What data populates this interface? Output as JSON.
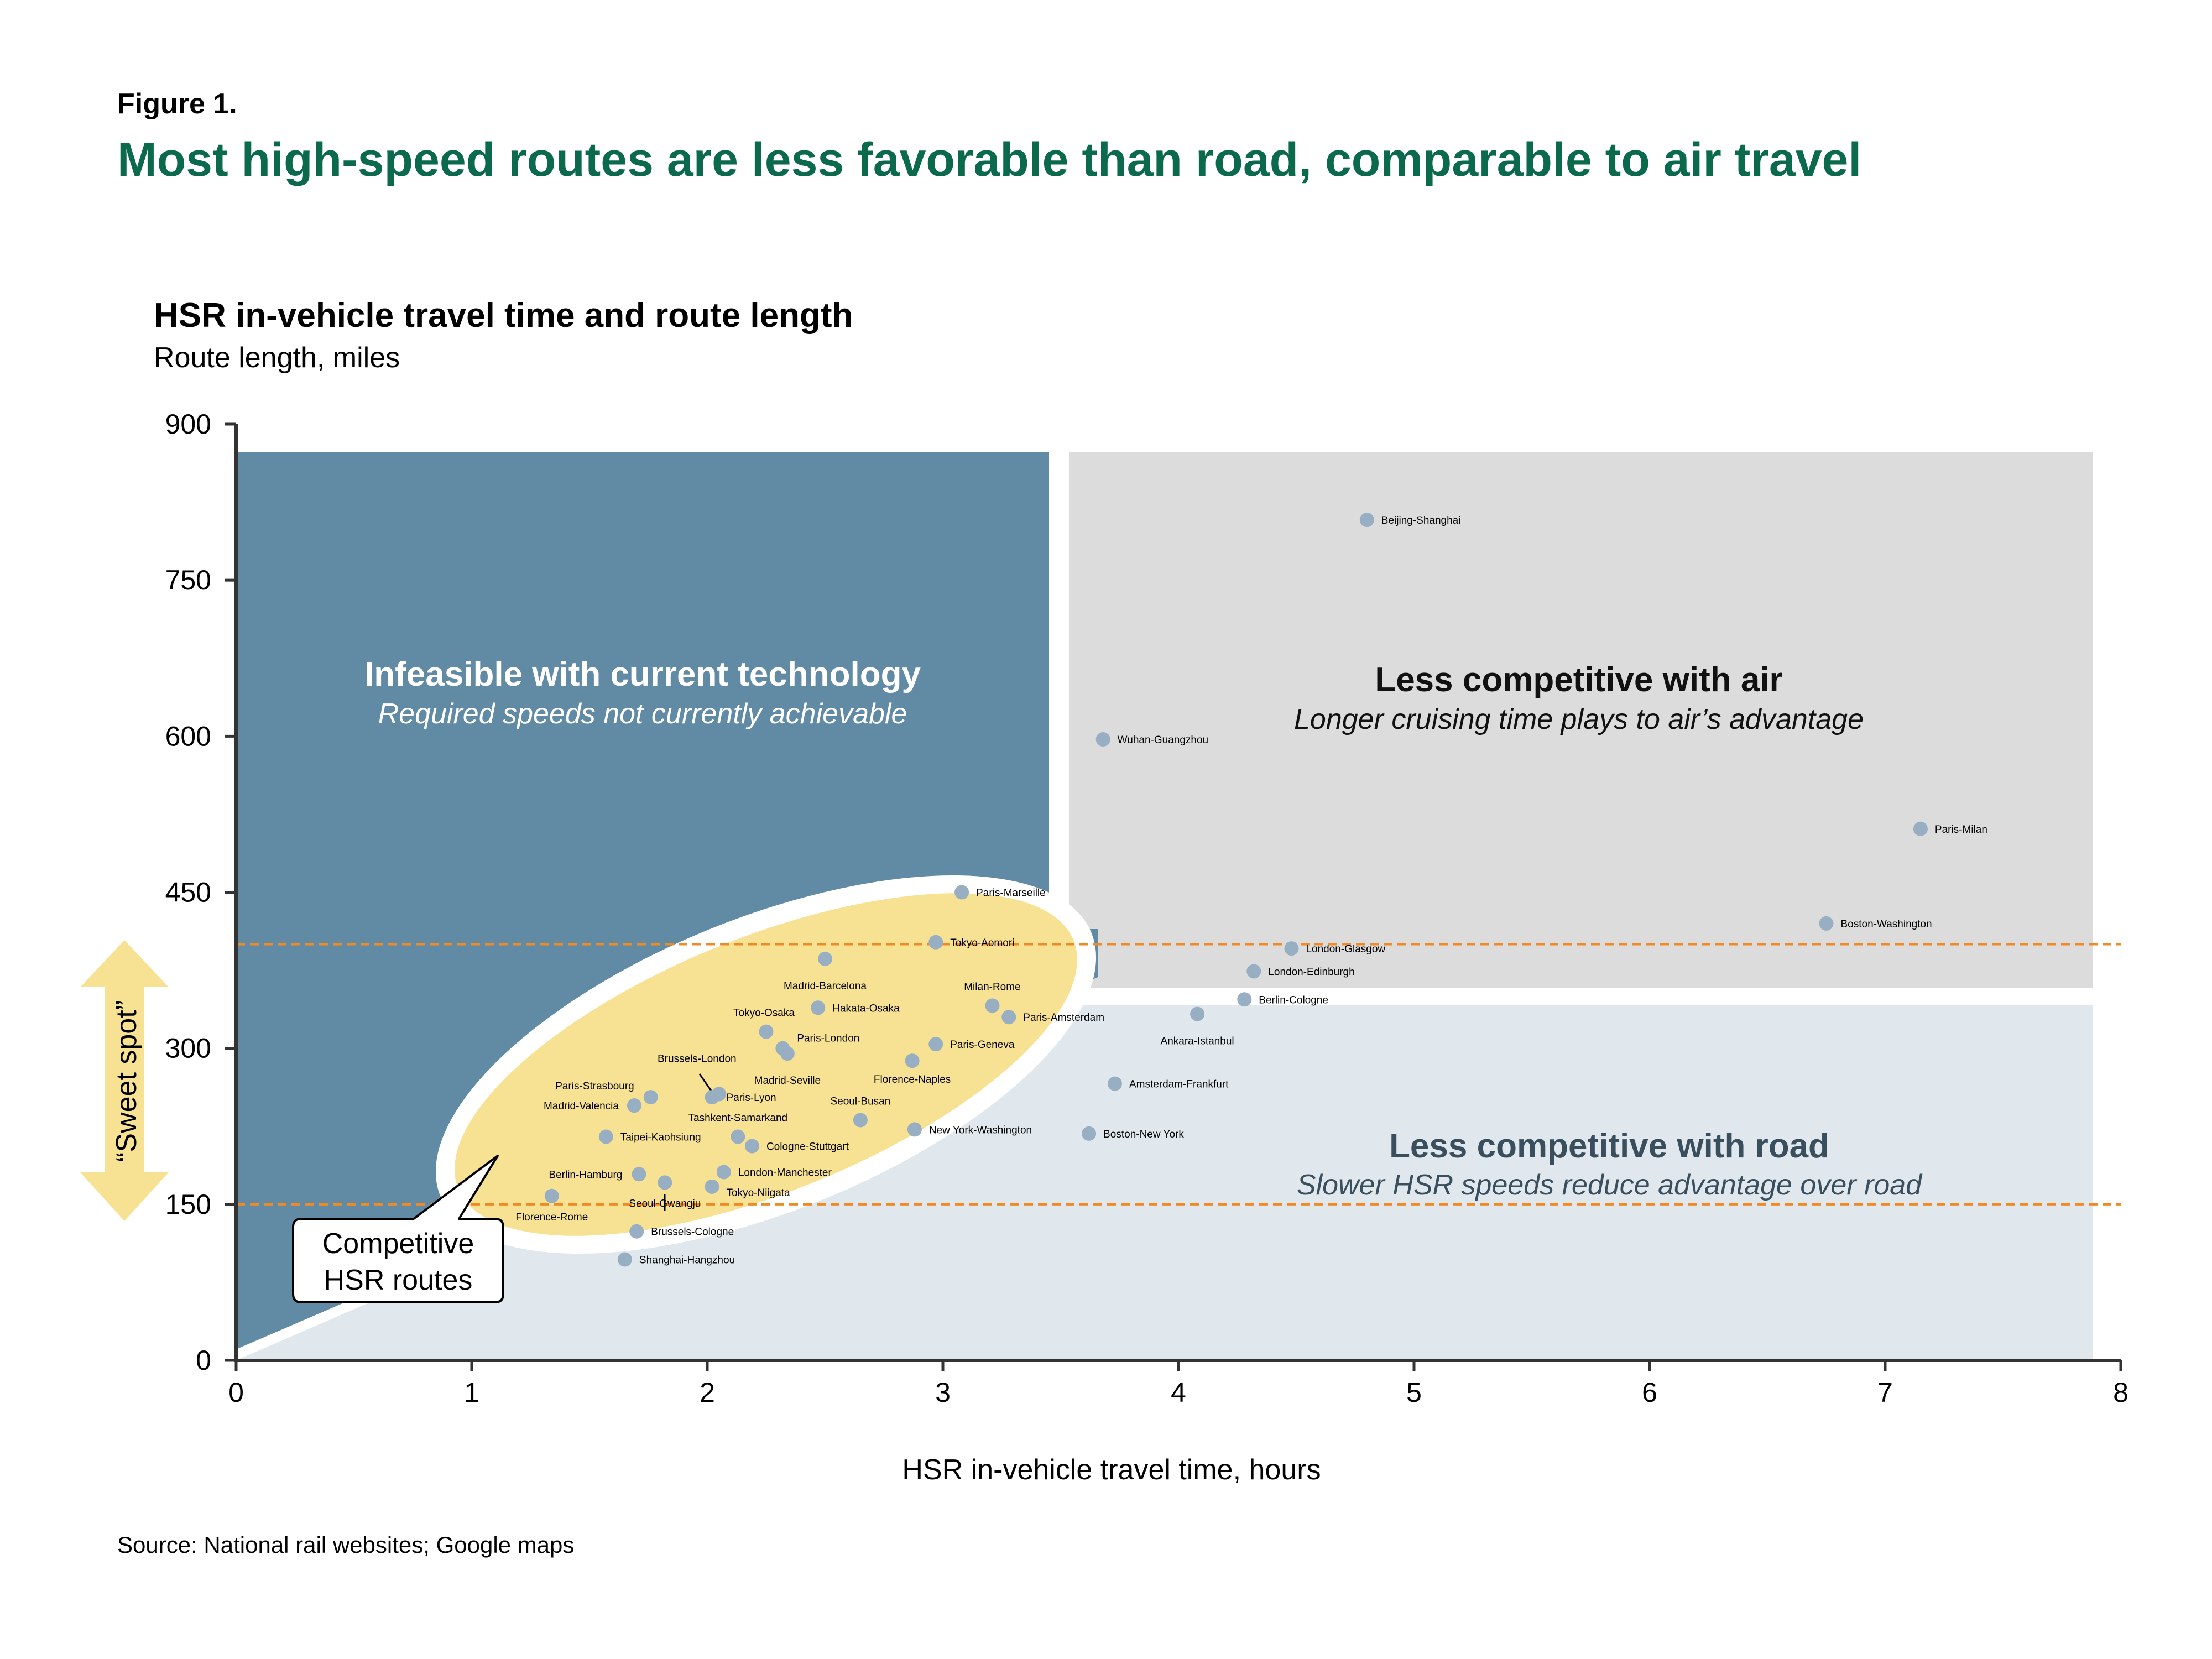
{
  "figure_label": "Figure 1.",
  "figure_title": "Most high-speed routes are less favorable than road, comparable to air travel",
  "source": "Source:  National rail websites; Google maps",
  "colors": {
    "title_green": "#0b6a4c",
    "infeasible_zone": "#618aa5",
    "air_zone": "#dcdcdc",
    "road_zone": "#e1e8ed",
    "sweet_spot": "#f7e294",
    "threshold_line": "#f08a24",
    "point": "#98aec2",
    "axis": "#333333"
  },
  "chart_data": {
    "type": "scatter",
    "title": "HSR in-vehicle travel time and route length",
    "subtitle": "Route length, miles",
    "xlabel": "HSR in-vehicle travel time, hours",
    "ylabel": "Route length, miles",
    "xlim": [
      0,
      8
    ],
    "ylim": [
      0,
      900
    ],
    "xticks": [
      0,
      1,
      2,
      3,
      4,
      5,
      6,
      7,
      8
    ],
    "yticks": [
      0,
      150,
      300,
      450,
      600,
      750,
      900
    ],
    "grid": false,
    "thresholds": [
      150,
      400
    ],
    "zones": {
      "infeasible": {
        "title": "Infeasible with current technology",
        "subtitle": "Required speeds not currently achievable"
      },
      "air": {
        "title": "Less competitive with air",
        "subtitle": "Longer cruising time plays to air’s advantage"
      },
      "road": {
        "title": "Less competitive with road",
        "subtitle": "Slower HSR speeds reduce advantage over road"
      }
    },
    "sweet_spot_label": "“Sweet spot”",
    "callout_label": [
      "Competitive",
      "HSR routes"
    ],
    "points": [
      {
        "label": "Beijing-Shanghai",
        "x": 4.8,
        "y": 808
      },
      {
        "label": "Wuhan-Guangzhou",
        "x": 3.68,
        "y": 597
      },
      {
        "label": "Paris-Milan",
        "x": 7.15,
        "y": 511
      },
      {
        "label": "Boston-Washington",
        "x": 6.75,
        "y": 420
      },
      {
        "label": "Paris-Marseille",
        "x": 3.08,
        "y": 450
      },
      {
        "label": "Tokyo-Aomori",
        "x": 2.97,
        "y": 402
      },
      {
        "label": "London-Glasgow",
        "x": 4.48,
        "y": 396
      },
      {
        "label": "London-Edinburgh",
        "x": 4.32,
        "y": 374
      },
      {
        "label": "Madrid-Barcelona",
        "x": 2.5,
        "y": 386
      },
      {
        "label": "Berlin-Cologne",
        "x": 4.28,
        "y": 347
      },
      {
        "label": "Milan-Rome",
        "x": 3.21,
        "y": 341
      },
      {
        "label": "Hakata-Osaka",
        "x": 2.47,
        "y": 339
      },
      {
        "label": "Ankara-Istanbul",
        "x": 4.08,
        "y": 333
      },
      {
        "label": "Paris-Amsterdam",
        "x": 3.28,
        "y": 330
      },
      {
        "label": "Tokyo-Osaka",
        "x": 2.25,
        "y": 316
      },
      {
        "label": "Paris-Geneva",
        "x": 2.97,
        "y": 304
      },
      {
        "label": "Paris-London",
        "x": 2.32,
        "y": 300
      },
      {
        "label": "Madrid-Seville",
        "x": 2.34,
        "y": 295
      },
      {
        "label": "Florence-Naples",
        "x": 2.87,
        "y": 288
      },
      {
        "label": "Amsterdam-Frankfurt",
        "x": 3.73,
        "y": 266
      },
      {
        "label": "Brussels-London",
        "x": 2.05,
        "y": 256
      },
      {
        "label": "Paris-Strasbourg",
        "x": 1.76,
        "y": 253
      },
      {
        "label": "Paris-Lyon",
        "x": 2.02,
        "y": 253
      },
      {
        "label": "Madrid-Valencia",
        "x": 1.69,
        "y": 245
      },
      {
        "label": "Seoul-Busan",
        "x": 2.65,
        "y": 231
      },
      {
        "label": "New York-Washington",
        "x": 2.88,
        "y": 222
      },
      {
        "label": "Boston-New York",
        "x": 3.62,
        "y": 218
      },
      {
        "label": "Tashkent-Samarkand",
        "x": 2.13,
        "y": 215
      },
      {
        "label": "Taipei-Kaohsiung",
        "x": 1.57,
        "y": 215
      },
      {
        "label": "Cologne-Stuttgart",
        "x": 2.19,
        "y": 206
      },
      {
        "label": "London-Manchester",
        "x": 2.07,
        "y": 181
      },
      {
        "label": "Berlin-Hamburg",
        "x": 1.71,
        "y": 179
      },
      {
        "label": "Seoul-Gwangju",
        "x": 1.82,
        "y": 171
      },
      {
        "label": "Tokyo-Niigata",
        "x": 2.02,
        "y": 167
      },
      {
        "label": "Florence-Rome",
        "x": 1.34,
        "y": 158
      },
      {
        "label": "Brussels-Cologne",
        "x": 1.7,
        "y": 124
      },
      {
        "label": "Shanghai-Hangzhou",
        "x": 1.65,
        "y": 97
      }
    ]
  }
}
